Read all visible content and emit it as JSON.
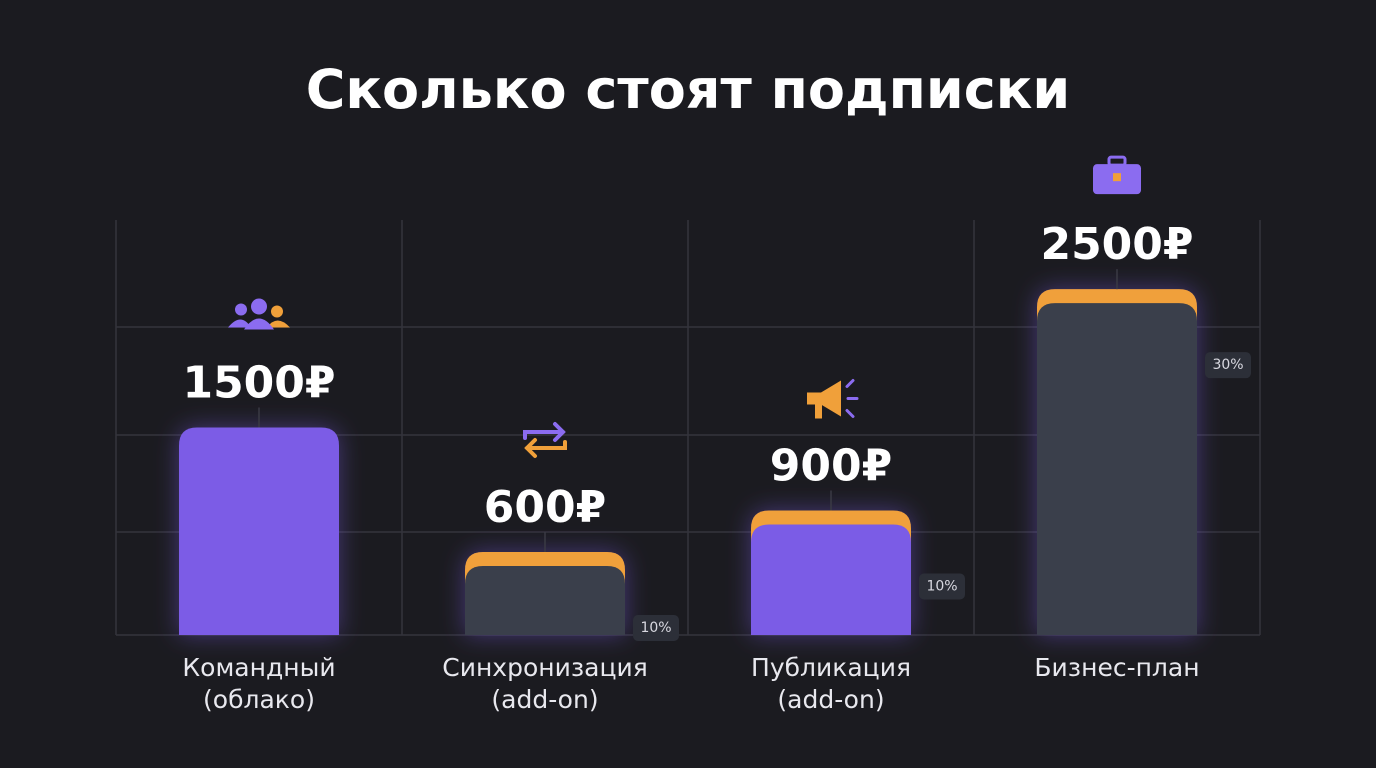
{
  "chart_data": {
    "type": "bar",
    "title": "Сколько стоят подписки",
    "categories": [
      "Командный\n(облако)",
      "Синхронизация\n(add-on)",
      "Публикация\n(add-on)",
      "Бизнес-план"
    ],
    "values": [
      1500,
      600,
      900,
      2500
    ],
    "value_labels": [
      "1500₽",
      "600₽",
      "900₽",
      "2500₽"
    ],
    "colors": [
      "#7b5ce6",
      "#3a3f4b",
      "#7b5ce6",
      "#3a3f4b"
    ],
    "highlight": [
      false,
      true,
      true,
      true
    ],
    "highlight_color": "#f0a03a",
    "badges": [
      null,
      "10%",
      "10%",
      "30%"
    ],
    "ylim": [
      0,
      3000
    ],
    "grid": true
  }
}
